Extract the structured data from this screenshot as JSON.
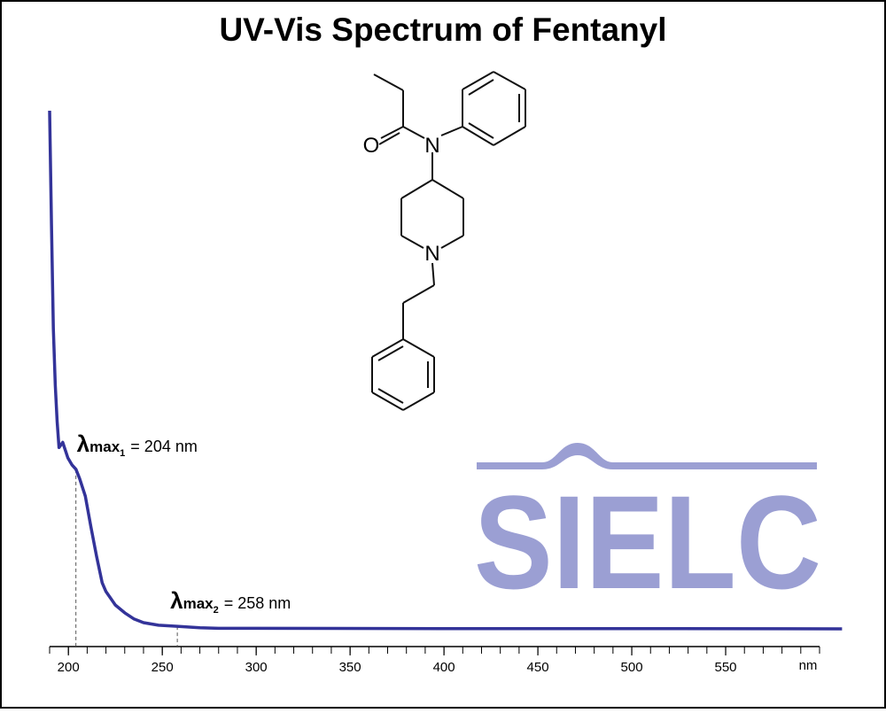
{
  "chart_data": {
    "type": "line",
    "title": "UV-Vis Spectrum of Fentanyl",
    "xlabel": "nm",
    "x": [
      190,
      191,
      192,
      193,
      194,
      195,
      197,
      199.7,
      202,
      204,
      206,
      209,
      212,
      215,
      218,
      220,
      225,
      230,
      235,
      240,
      248,
      258,
      270,
      280,
      300,
      400,
      500,
      612
    ],
    "values": [
      1.0,
      0.78,
      0.58,
      0.47,
      0.4,
      0.35,
      0.36,
      0.33,
      0.316,
      0.308,
      0.29,
      0.256,
      0.197,
      0.14,
      0.089,
      0.072,
      0.046,
      0.031,
      0.019,
      0.012,
      0.007,
      0.005,
      0.002,
      0.001,
      0.001,
      0.0005,
      0.0005,
      0
    ],
    "color": "#333399",
    "xlim": [
      190,
      600
    ],
    "ylim": [
      0,
      1
    ],
    "xticks": [
      200,
      250,
      300,
      350,
      400,
      450,
      500,
      550
    ],
    "xminor_ticks": [
      190,
      200,
      210,
      220,
      230,
      240,
      250,
      260,
      270,
      280,
      290,
      300,
      310,
      320,
      330,
      340,
      350,
      360,
      370,
      380,
      390,
      400,
      410,
      420,
      430,
      440,
      450,
      460,
      470,
      480,
      490,
      500,
      510,
      520,
      530,
      540,
      550,
      560,
      570,
      580,
      590,
      600
    ],
    "annotations": [
      {
        "symbol": "λ",
        "subscript": "max",
        "index": "1",
        "text": "= 204 nm",
        "x": 204
      },
      {
        "symbol": "λ",
        "subscript": "max",
        "index": "2",
        "text": "= 258 nm",
        "x": 258
      }
    ]
  },
  "structure": {
    "atoms": [
      "O",
      "N",
      "N"
    ]
  },
  "logo": "SIELC"
}
